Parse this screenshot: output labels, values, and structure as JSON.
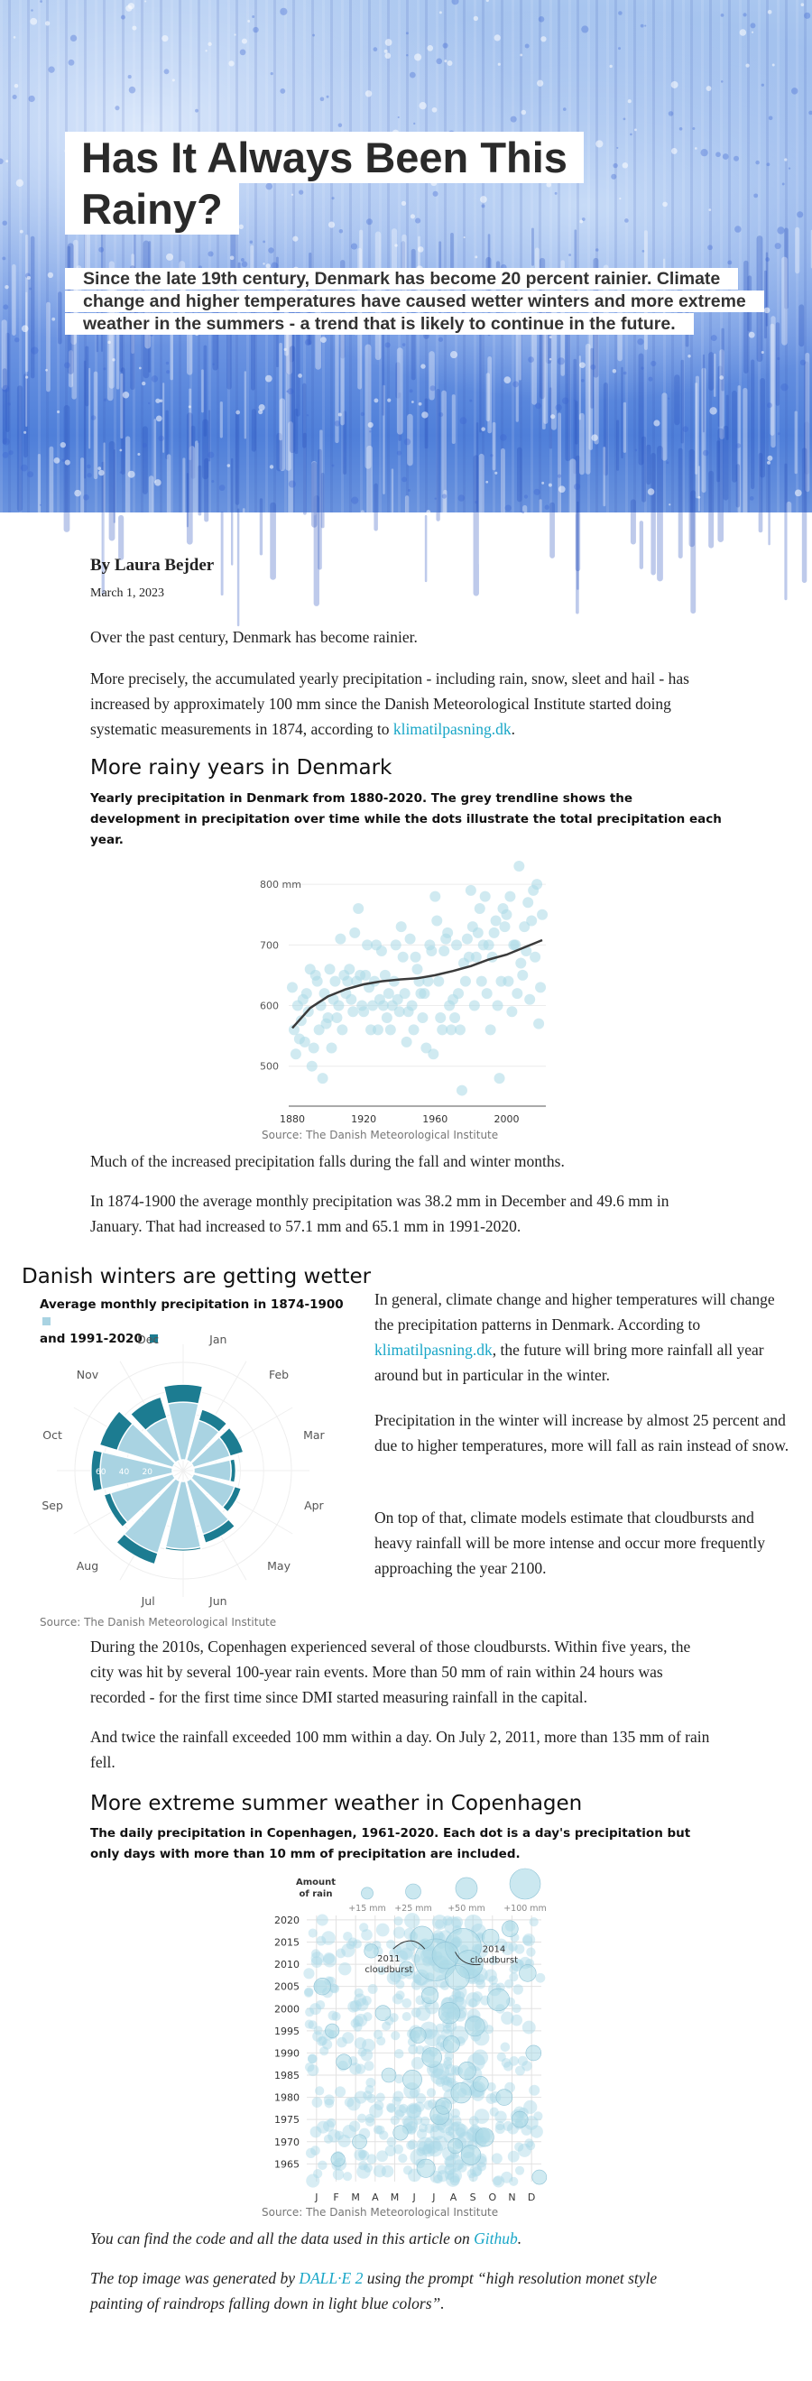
{
  "hero": {
    "title": "Has It Always Been This Rainy?",
    "subtitle": "Since the late 19th century, Denmark has become 20 percent rainier. Climate change and higher temperatures have caused wetter winters and more extreme weather in the summers - a trend that is likely to continue in the future."
  },
  "article": {
    "byline": "By Laura Bejder",
    "date": "March 1, 2023",
    "p1": "Over the past century, Denmark has become rainier.",
    "p2_before": "More precisely, the accumulated yearly precipitation - including rain, snow, sleet and hail - has increased by approximately 100 mm since the Danish Meteorological Institute started doing systematic measurements in 1874, according to ",
    "p2_link": "klimatilpasning.dk",
    "p2_after": ".",
    "section1_title": "More rainy years in Denmark",
    "section1_sub": "Yearly precipitation in Denmark from 1880-2020. The grey trendline shows the development in precipitation over time while the dots illustrate the total precipitation each year.",
    "p3": "Much of the increased precipitation falls during the fall and winter months.",
    "p4": "In 1874-1900 the average monthly precipitation was 38.2 mm in December and 49.6 mm in January. That had increased to 57.1 mm and 65.1 mm in 1991-2020.",
    "section2_title": "Danish winters are getting wetter",
    "section2_sub_a": "Average monthly precipitation in 1874-1900",
    "section2_sub_b": "and 1991-2020",
    "side_p1_before": "In general, climate change and higher temperatures will change the precipitation patterns in Denmark. According to ",
    "side_p1_link": "klimatilpasning.dk",
    "side_p1_after": ", the future will bring more rainfall all year around but in particular in the winter.",
    "side_p2": "Precipitation in the winter will increase by almost 25 percent and due to higher temperatures, more will fall as rain instead of snow.",
    "side_p3": "On top of that, climate models estimate that cloudbursts and heavy rainfall will be more intense and occur more frequently approaching the year 2100.",
    "p5": "During the 2010s, Copenhagen experienced several of those cloudbursts. Within five years, the city was hit by several 100-year rain events. More than 50 mm of rain within 24 hours was recorded - for the first time since DMI started measuring rainfall in the capital.",
    "p6": "And twice the rainfall exceeded 100 mm within a day. On July 2, 2011, more than 135 mm of rain fell.",
    "section3_title": "More extreme summer weather in Copenhagen",
    "section3_sub": "The daily precipitation in Copenhagen, 1961-2020. Each dot is a day's precipitation but only days with more than 10 mm of precipitation are included.",
    "source": "Source: The Danish Meteorological Institute",
    "foot1_before": "You can find the code and all the data used in this article on ",
    "foot1_link": "Github",
    "foot1_after": ".",
    "foot2_before": "The top image was generated by ",
    "foot2_link": "DALL·E 2",
    "foot2_after": " using the prompt “high resolution monet style painting of raindrops falling down in light blue colors”."
  },
  "chart_data": [
    {
      "type": "scatter",
      "title": "",
      "x_ticks": [
        "1880",
        "1920",
        "1960",
        "2000"
      ],
      "y_ticks": [
        "500",
        "600",
        "700",
        "800 mm"
      ],
      "xlim": [
        1878,
        2022
      ],
      "ylim": [
        440,
        830
      ],
      "colors": {
        "dots": "#a9d8e6",
        "trend": "#3a3a3a"
      },
      "x": [
        1880,
        1881,
        1882,
        1883,
        1884,
        1885,
        1886,
        1887,
        1888,
        1889,
        1890,
        1891,
        1892,
        1893,
        1894,
        1895,
        1896,
        1897,
        1898,
        1899,
        1900,
        1901,
        1902,
        1903,
        1904,
        1905,
        1906,
        1907,
        1908,
        1909,
        1910,
        1911,
        1912,
        1913,
        1914,
        1915,
        1916,
        1917,
        1918,
        1919,
        1920,
        1921,
        1922,
        1923,
        1924,
        1925,
        1926,
        1927,
        1928,
        1929,
        1930,
        1931,
        1932,
        1933,
        1934,
        1935,
        1936,
        1937,
        1938,
        1939,
        1940,
        1941,
        1942,
        1943,
        1944,
        1945,
        1946,
        1947,
        1948,
        1949,
        1950,
        1951,
        1952,
        1953,
        1954,
        1955,
        1956,
        1957,
        1958,
        1959,
        1960,
        1961,
        1962,
        1963,
        1964,
        1965,
        1966,
        1967,
        1968,
        1969,
        1970,
        1971,
        1972,
        1973,
        1974,
        1975,
        1976,
        1977,
        1978,
        1979,
        1980,
        1981,
        1982,
        1983,
        1984,
        1985,
        1986,
        1987,
        1988,
        1989,
        1990,
        1991,
        1992,
        1993,
        1994,
        1995,
        1996,
        1997,
        1998,
        1999,
        2000,
        2001,
        2002,
        2003,
        2004,
        2005,
        2006,
        2007,
        2008,
        2009,
        2010,
        2011,
        2012,
        2013,
        2014,
        2015,
        2016,
        2017,
        2018,
        2019,
        2020
      ],
      "y": [
        630,
        560,
        520,
        600,
        545,
        575,
        610,
        540,
        620,
        590,
        660,
        500,
        530,
        650,
        640,
        560,
        600,
        480,
        620,
        570,
        580,
        660,
        530,
        610,
        640,
        580,
        600,
        710,
        560,
        650,
        620,
        640,
        660,
        610,
        590,
        720,
        640,
        760,
        650,
        600,
        590,
        650,
        700,
        630,
        560,
        600,
        640,
        700,
        560,
        610,
        690,
        600,
        650,
        580,
        620,
        560,
        600,
        640,
        700,
        610,
        590,
        730,
        680,
        620,
        540,
        590,
        710,
        600,
        560,
        680,
        660,
        640,
        620,
        580,
        620,
        530,
        640,
        700,
        690,
        520,
        780,
        740,
        640,
        580,
        560,
        690,
        710,
        720,
        600,
        560,
        610,
        580,
        700,
        620,
        560,
        460,
        670,
        640,
        710,
        680,
        790,
        730,
        600,
        680,
        720,
        760,
        640,
        700,
        780,
        620,
        700,
        560,
        680,
        720,
        740,
        600,
        480,
        640,
        760,
        730,
        750,
        640,
        780,
        590,
        700,
        700,
        620,
        830,
        670,
        650,
        730,
        690,
        770,
        610,
        740,
        790,
        680,
        800,
        570,
        630,
        750
      ],
      "trend": [
        [
          1880,
          563
        ],
        [
          1890,
          596
        ],
        [
          1900,
          615
        ],
        [
          1910,
          627
        ],
        [
          1920,
          635
        ],
        [
          1930,
          640
        ],
        [
          1940,
          643
        ],
        [
          1950,
          645
        ],
        [
          1960,
          650
        ],
        [
          1970,
          657
        ],
        [
          1980,
          665
        ],
        [
          1990,
          676
        ],
        [
          2000,
          684
        ],
        [
          2010,
          696
        ],
        [
          2020,
          708
        ]
      ]
    },
    {
      "type": "radial-bar",
      "title": "Average monthly precipitation in 1874-1900 and 1991-2020",
      "categories": [
        "Jan",
        "Feb",
        "Mar",
        "Apr",
        "May",
        "Jun",
        "Jul",
        "Aug",
        "Sep",
        "Oct",
        "Nov",
        "Dec"
      ],
      "ring_labels": [
        "20",
        "40",
        "60"
      ],
      "series": [
        {
          "name": "1874-1900",
          "color": "#a9d3e2",
          "values": [
            49.6,
            36,
            33,
            32,
            37,
            48,
            58,
            65,
            56,
            62,
            50,
            38.2
          ]
        },
        {
          "name": "1991-2020",
          "color": "#1c7c91",
          "values": [
            65.1,
            46,
            45,
            36,
            43,
            56,
            60,
            75,
            62,
            70,
            66,
            57.1
          ]
        }
      ]
    },
    {
      "type": "scatter",
      "title": "",
      "x_ticks": [
        "J",
        "F",
        "M",
        "A",
        "M",
        "J",
        "J",
        "A",
        "S",
        "O",
        "N",
        "D"
      ],
      "y_ticks": [
        "1965",
        "1970",
        "1975",
        "1980",
        "1985",
        "1990",
        "1995",
        "2000",
        "2005",
        "2010",
        "2015",
        "2020"
      ],
      "ylim": [
        1961,
        2021
      ],
      "legend_title": "Amount of rain",
      "legend": [
        "+15 mm",
        "+25 mm",
        "+50 mm",
        "+100 mm"
      ],
      "legend_values": [
        15,
        25,
        50,
        100
      ],
      "annotations": [
        {
          "text": "2011 cloudburst",
          "year": 2011,
          "month": 7
        },
        {
          "text": "2014 cloudburst",
          "year": 2014,
          "month": 8
        }
      ],
      "colors": {
        "dots": "#a9d8e6",
        "grid": "#e2e2e2"
      },
      "note": "Only days with more than 10 mm of precipitation are included.",
      "points": [
        [
          7.1,
          2011,
          135
        ],
        [
          8.5,
          2014,
          100
        ],
        [
          8.8,
          2010,
          60
        ],
        [
          7.6,
          2012,
          55
        ],
        [
          8.2,
          2007,
          45
        ],
        [
          6.4,
          2016,
          40
        ],
        [
          10.3,
          2002,
          38
        ],
        [
          7.8,
          1999,
          35
        ],
        [
          9.1,
          1996,
          30
        ],
        [
          6.9,
          1989,
          30
        ],
        [
          5.9,
          1984,
          28
        ],
        [
          8.4,
          1981,
          32
        ],
        [
          7.3,
          1976,
          28
        ],
        [
          9.6,
          1971,
          26
        ],
        [
          8.9,
          1967,
          30
        ],
        [
          6.6,
          1964,
          26
        ],
        [
          1.3,
          2005,
          22
        ],
        [
          2.4,
          1988,
          18
        ],
        [
          3.2,
          1970,
          16
        ],
        [
          4.4,
          1999,
          18
        ],
        [
          11.4,
          1975,
          20
        ],
        [
          12.1,
          1990,
          18
        ],
        [
          11.8,
          2008,
          22
        ],
        [
          10.6,
          1980,
          20
        ],
        [
          5.3,
          1972,
          17
        ],
        [
          6.2,
          1994,
          19
        ],
        [
          7.9,
          1992,
          21
        ],
        [
          8.7,
          1986,
          24
        ],
        [
          9.4,
          1983,
          18
        ],
        [
          7.5,
          1978,
          20
        ],
        [
          8.1,
          1969,
          17
        ],
        [
          6.8,
          2003,
          21
        ],
        [
          5.6,
          2009,
          16
        ],
        [
          4.7,
          1985,
          16
        ],
        [
          10.9,
          2018,
          20
        ],
        [
          3.8,
          2013,
          15
        ],
        [
          2.1,
          1966,
          15
        ],
        [
          12.4,
          1962,
          16
        ],
        [
          1.8,
          1995,
          15
        ],
        [
          9.9,
          2016,
          22
        ]
      ]
    }
  ]
}
